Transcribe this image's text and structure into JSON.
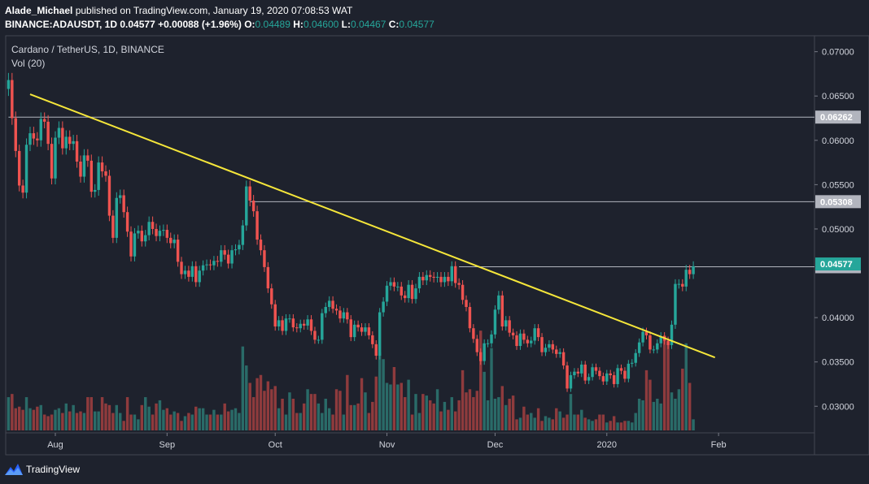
{
  "header": {
    "author": "Alade_Michael",
    "published_text": " published on TradingView.com, January 19, 2020 07:08:53 WAT",
    "symbol": "BINANCE:ADAUSDT, 1D",
    "last": "0.04577",
    "change": "+0.00088 (+1.96%)",
    "o_label": "O:",
    "o_value": "0.04489",
    "h_label": "H:",
    "h_value": "0.04600",
    "l_label": "L:",
    "l_value": "0.04467",
    "c_label": "C:",
    "c_value": "0.04577"
  },
  "legend": {
    "title": "Cardano / TetherUS, 1D, BINANCE",
    "volume": "Vol (20)"
  },
  "footer": {
    "brand": "TradingView"
  },
  "colors": {
    "background": "#1e222d",
    "up": "#26a69a",
    "down": "#ef5350",
    "vol_up": "#2a6b68",
    "vol_down": "#8f3b3d",
    "trendline": "#f5e63a",
    "hline": "#b2b5be"
  },
  "chart_data": {
    "type": "candlestick",
    "title": "Cardano / TetherUS, 1D, BINANCE",
    "ylim": [
      0.027,
      0.0718
    ],
    "y_ticks": [
      "0.07000",
      "0.06500",
      "0.06000",
      "0.05500",
      "0.05000",
      "0.04000",
      "0.03500",
      "0.03000"
    ],
    "x_ticks": [
      {
        "label": "Aug",
        "day": 13
      },
      {
        "label": "Sep",
        "day": 44
      },
      {
        "label": "Oct",
        "day": 74
      },
      {
        "label": "Nov",
        "day": 105
      },
      {
        "label": "Dec",
        "day": 135
      },
      {
        "label": "2020",
        "day": 166
      },
      {
        "label": "Feb",
        "day": 197
      }
    ],
    "horizontal_lines": [
      {
        "price": 0.06262,
        "label": "0.06262",
        "from_day": 0
      },
      {
        "price": 0.05308,
        "label": "0.05308",
        "from_day": 67
      },
      {
        "price": 0.04574,
        "label": "0.04574",
        "from_day": 125
      }
    ],
    "last_price_label": {
      "price": 0.04577,
      "label": "0.04577"
    },
    "trendline": {
      "start": {
        "day": 6,
        "price": 0.0652
      },
      "end": {
        "day": 196,
        "price": 0.0355
      }
    },
    "series_start_day": 0,
    "closes": [
      0.0668,
      0.0625,
      0.0588,
      0.0549,
      0.0541,
      0.0595,
      0.0608,
      0.0602,
      0.06,
      0.0624,
      0.0621,
      0.0596,
      0.0557,
      0.0603,
      0.0614,
      0.0591,
      0.0604,
      0.0596,
      0.0599,
      0.0576,
      0.0559,
      0.0583,
      0.0577,
      0.0542,
      0.0544,
      0.0575,
      0.0565,
      0.056,
      0.0515,
      0.049,
      0.0535,
      0.0538,
      0.0519,
      0.0497,
      0.0469,
      0.0495,
      0.0498,
      0.0486,
      0.0493,
      0.0508,
      0.05,
      0.0492,
      0.0498,
      0.0499,
      0.049,
      0.0484,
      0.0488,
      0.0463,
      0.0449,
      0.0453,
      0.0446,
      0.0458,
      0.044,
      0.0453,
      0.0459,
      0.046,
      0.0459,
      0.0464,
      0.0463,
      0.0476,
      0.0471,
      0.0461,
      0.0476,
      0.0477,
      0.0482,
      0.0504,
      0.0548,
      0.0532,
      0.052,
      0.0488,
      0.0476,
      0.0457,
      0.0433,
      0.0415,
      0.039,
      0.0397,
      0.0385,
      0.0399,
      0.0399,
      0.0389,
      0.0388,
      0.0393,
      0.0391,
      0.0398,
      0.0385,
      0.0375,
      0.0375,
      0.0405,
      0.0412,
      0.0419,
      0.041,
      0.0408,
      0.0399,
      0.0406,
      0.0398,
      0.0378,
      0.0392,
      0.0389,
      0.0384,
      0.0389,
      0.038,
      0.037,
      0.0357,
      0.0406,
      0.0418,
      0.0436,
      0.044,
      0.0435,
      0.0435,
      0.0425,
      0.0422,
      0.0437,
      0.0421,
      0.0433,
      0.0446,
      0.0442,
      0.0448,
      0.0446,
      0.0445,
      0.0446,
      0.044,
      0.0446,
      0.0441,
      0.0458,
      0.0439,
      0.0437,
      0.042,
      0.0412,
      0.0388,
      0.0376,
      0.0361,
      0.0351,
      0.0371,
      0.0371,
      0.0381,
      0.0409,
      0.0425,
      0.039,
      0.0397,
      0.0383,
      0.038,
      0.0368,
      0.0382,
      0.0375,
      0.0371,
      0.0374,
      0.0388,
      0.0378,
      0.0361,
      0.0366,
      0.037,
      0.0364,
      0.0359,
      0.0361,
      0.0346,
      0.032,
      0.0335,
      0.0339,
      0.0337,
      0.0347,
      0.0329,
      0.0333,
      0.0344,
      0.034,
      0.0334,
      0.0328,
      0.0337,
      0.0335,
      0.0325,
      0.0343,
      0.034,
      0.0331,
      0.0348,
      0.0349,
      0.036,
      0.0372,
      0.0384,
      0.038,
      0.0364,
      0.0364,
      0.0371,
      0.0379,
      0.0374,
      0.0369,
      0.0392,
      0.0438,
      0.0438,
      0.0435,
      0.0454,
      0.0449,
      0.0458
    ],
    "volumes": [
      0.21,
      0.23,
      0.14,
      0.15,
      0.13,
      0.21,
      0.14,
      0.13,
      0.15,
      0.16,
      0.1,
      0.09,
      0.1,
      0.13,
      0.14,
      0.11,
      0.17,
      0.12,
      0.16,
      0.11,
      0.12,
      0.11,
      0.21,
      0.21,
      0.12,
      0.12,
      0.21,
      0.17,
      0.16,
      0.11,
      0.16,
      0.11,
      0.06,
      0.21,
      0.1,
      0.1,
      0.07,
      0.16,
      0.21,
      0.15,
      0.1,
      0.17,
      0.19,
      0.13,
      0.14,
      0.1,
      0.12,
      0.11,
      0.06,
      0.09,
      0.11,
      0.1,
      0.15,
      0.14,
      0.14,
      0.1,
      0.1,
      0.13,
      0.1,
      0.1,
      0.17,
      0.12,
      0.13,
      0.14,
      0.11,
      0.53,
      0.41,
      0.3,
      0.21,
      0.33,
      0.35,
      0.25,
      0.31,
      0.26,
      0.28,
      0.14,
      0.2,
      0.1,
      0.24,
      0.2,
      0.11,
      0.11,
      0.17,
      0.26,
      0.23,
      0.23,
      0.17,
      0.11,
      0.2,
      0.14,
      0.1,
      0.26,
      0.25,
      0.1,
      0.35,
      0.16,
      0.16,
      0.17,
      0.33,
      0.24,
      0.11,
      0.18,
      0.34,
      0.49,
      0.45,
      0.3,
      0.29,
      0.4,
      0.29,
      0.3,
      0.21,
      0.32,
      0.1,
      0.23,
      0.11,
      0.23,
      0.22,
      0.19,
      0.17,
      0.26,
      0.12,
      0.18,
      0.13,
      0.21,
      0.12,
      0.19,
      0.38,
      0.24,
      0.26,
      0.21,
      0.25,
      0.63,
      0.37,
      0.19,
      0.52,
      0.2,
      0.21,
      0.28,
      0.16,
      0.2,
      0.22,
      0.07,
      0.08,
      0.15,
      0.1,
      0.11,
      0.08,
      0.14,
      0.06,
      0.09,
      0.08,
      0.07,
      0.14,
      0.12,
      0.08,
      0.1,
      0.23,
      0.1,
      0.1,
      0.13,
      0.08,
      0.07,
      0.06,
      0.07,
      0.1,
      0.1,
      0.05,
      0.06,
      0.09,
      0.05,
      0.05,
      0.06,
      0.06,
      0.05,
      0.11,
      0.2,
      0.19,
      0.38,
      0.32,
      0.18,
      0.2,
      0.17,
      0.6,
      0.56,
      0.24,
      0.2,
      0.26,
      0.39,
      0.55,
      0.3,
      0.07
    ]
  }
}
